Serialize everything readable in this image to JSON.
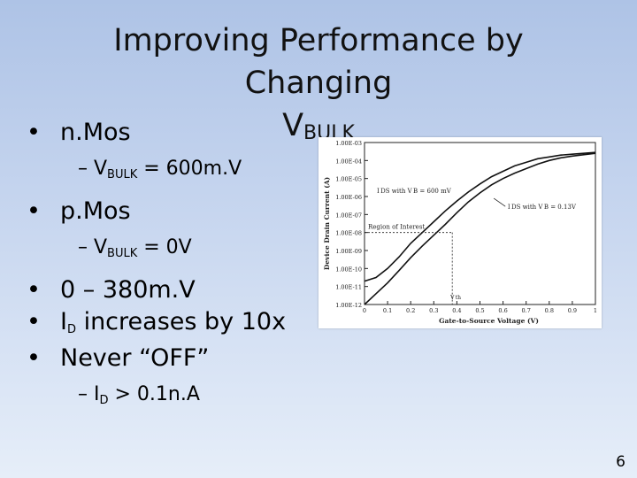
{
  "slide": {
    "title_line1": "Improving Performance by Changing",
    "title_v": "V",
    "title_sub": "BULK",
    "slide_number": "6"
  },
  "bullets": {
    "nmos": "n.Mos",
    "nmos_sub": {
      "prefix": "– V",
      "sub": "BULK",
      "suffix": " = 600m.V"
    },
    "pmos": "p.Mos",
    "pmos_sub": {
      "prefix": "– V",
      "sub": "BULK",
      "suffix": " = 0V"
    },
    "range": "0 – 380m.V",
    "id_increase": {
      "prefix": "I",
      "sub": "D",
      "suffix": " increases by 10x"
    },
    "never_off": "Never “OFF”",
    "id_min": {
      "prefix": "– I",
      "sub": "D",
      "suffix": " > 0.1n.A"
    }
  },
  "chart_data": {
    "type": "line",
    "xlabel": "Gate-to-Source Voltage (V)",
    "ylabel": "Device Drain Current (A)",
    "xticks": [
      "0",
      "0.1",
      "0.2",
      "0.3",
      "0.4",
      "0.5",
      "0.6",
      "0.7",
      "0.8",
      "0.9",
      "1"
    ],
    "yticks": [
      "1.00E-03",
      "1.00E-04",
      "1.00E-05",
      "1.00E-06",
      "1.00E-07",
      "1.00E-08",
      "1.00E-09",
      "1.00E-10",
      "1.00E-11",
      "1.00E-12"
    ],
    "xlim": [
      0,
      1
    ],
    "ylog_exp_range": [
      -12,
      -3
    ],
    "annotations": {
      "ids_600": "I DS with V B = 600 mV",
      "ids_0": "I DS with V B = 0.13V",
      "region": "Region of Interest",
      "vth": "V th"
    },
    "vth_x": 0.38,
    "series": [
      {
        "x": [
          0,
          0.05,
          0.1,
          0.15,
          0.2,
          0.25,
          0.3,
          0.35,
          0.4,
          0.45,
          0.5,
          0.55,
          0.6,
          0.65,
          0.7,
          0.75,
          0.8,
          0.85,
          0.9,
          1.0
        ],
        "y": [
          -10.7,
          -10.5,
          -10.0,
          -9.35,
          -8.6,
          -8.0,
          -7.4,
          -6.8,
          -6.25,
          -5.75,
          -5.3,
          -4.9,
          -4.6,
          -4.3,
          -4.1,
          -3.9,
          -3.8,
          -3.7,
          -3.65,
          -3.55
        ]
      },
      {
        "x": [
          0,
          0.05,
          0.1,
          0.15,
          0.2,
          0.25,
          0.3,
          0.35,
          0.4,
          0.45,
          0.5,
          0.55,
          0.6,
          0.65,
          0.7,
          0.75,
          0.8,
          0.85,
          0.9,
          1.0
        ],
        "y": [
          -12.0,
          -11.4,
          -10.8,
          -10.1,
          -9.4,
          -8.75,
          -8.15,
          -7.55,
          -6.9,
          -6.3,
          -5.8,
          -5.35,
          -5.0,
          -4.7,
          -4.45,
          -4.2,
          -4.0,
          -3.85,
          -3.75,
          -3.6
        ]
      }
    ]
  }
}
